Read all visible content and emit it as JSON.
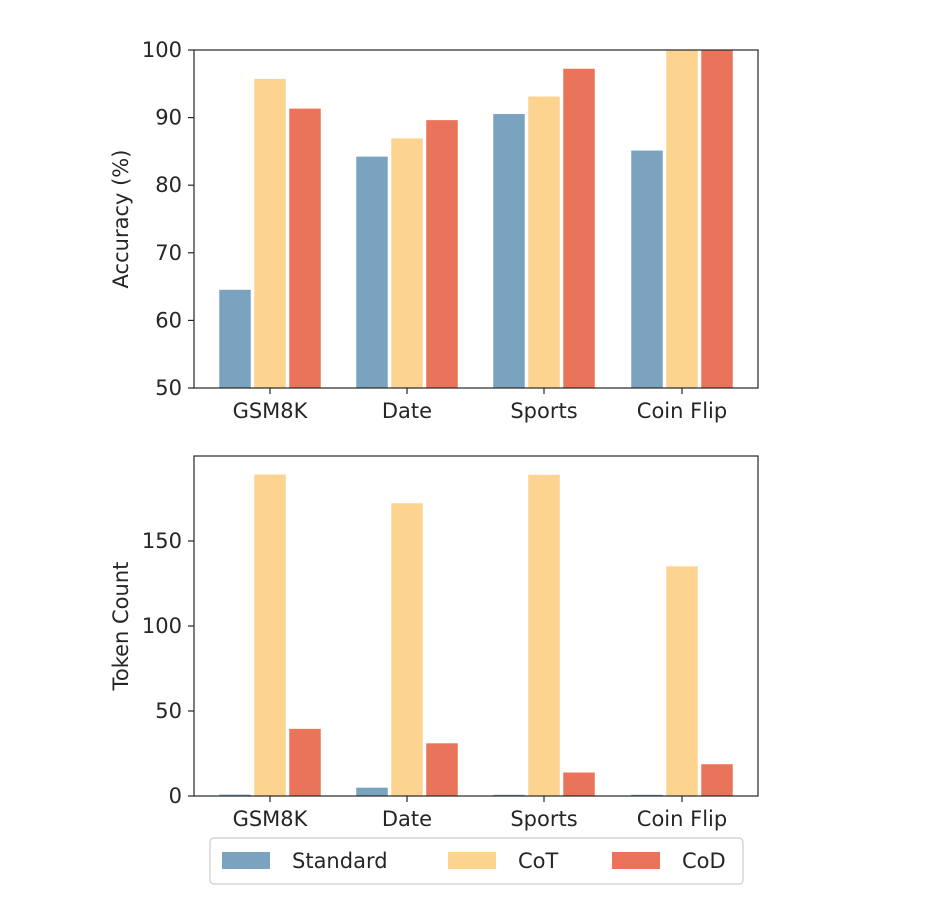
{
  "colors": {
    "Standard": "#7aa3bf",
    "CoT": "#fcd490",
    "CoD": "#ea7459",
    "axis": "#262626",
    "legend_border": "#cccccc"
  },
  "legend": {
    "placement": "bottom-center",
    "entries": [
      "Standard",
      "CoT",
      "CoD"
    ]
  },
  "chart_data": [
    {
      "type": "bar",
      "title": "",
      "xlabel": "",
      "ylabel": "Accuracy (%)",
      "categories": [
        "GSM8K",
        "Date",
        "Sports",
        "Coin Flip"
      ],
      "ylim": [
        50,
        100
      ],
      "yticks": [
        50,
        60,
        70,
        80,
        90,
        100
      ],
      "grid": false,
      "series": [
        {
          "name": "Standard",
          "values": [
            64.6,
            84.3,
            90.6,
            85.2
          ]
        },
        {
          "name": "CoT",
          "values": [
            95.8,
            87.0,
            93.2,
            100.0
          ]
        },
        {
          "name": "CoD",
          "values": [
            91.4,
            89.7,
            97.3,
            100.0
          ]
        }
      ]
    },
    {
      "type": "bar",
      "title": "",
      "xlabel": "",
      "ylabel": "Token Count",
      "categories": [
        "GSM8K",
        "Date",
        "Sports",
        "Coin Flip"
      ],
      "ylim": [
        0,
        200
      ],
      "yticks": [
        0,
        50,
        100,
        150
      ],
      "grid": false,
      "series": [
        {
          "name": "Standard",
          "values": [
            1.1,
            5.2,
            1.0,
            1.0
          ]
        },
        {
          "name": "CoT",
          "values": [
            189.4,
            172.5,
            189.2,
            135.4
          ]
        },
        {
          "name": "CoD",
          "values": [
            39.8,
            31.3,
            14.1,
            19.0
          ]
        }
      ]
    }
  ]
}
